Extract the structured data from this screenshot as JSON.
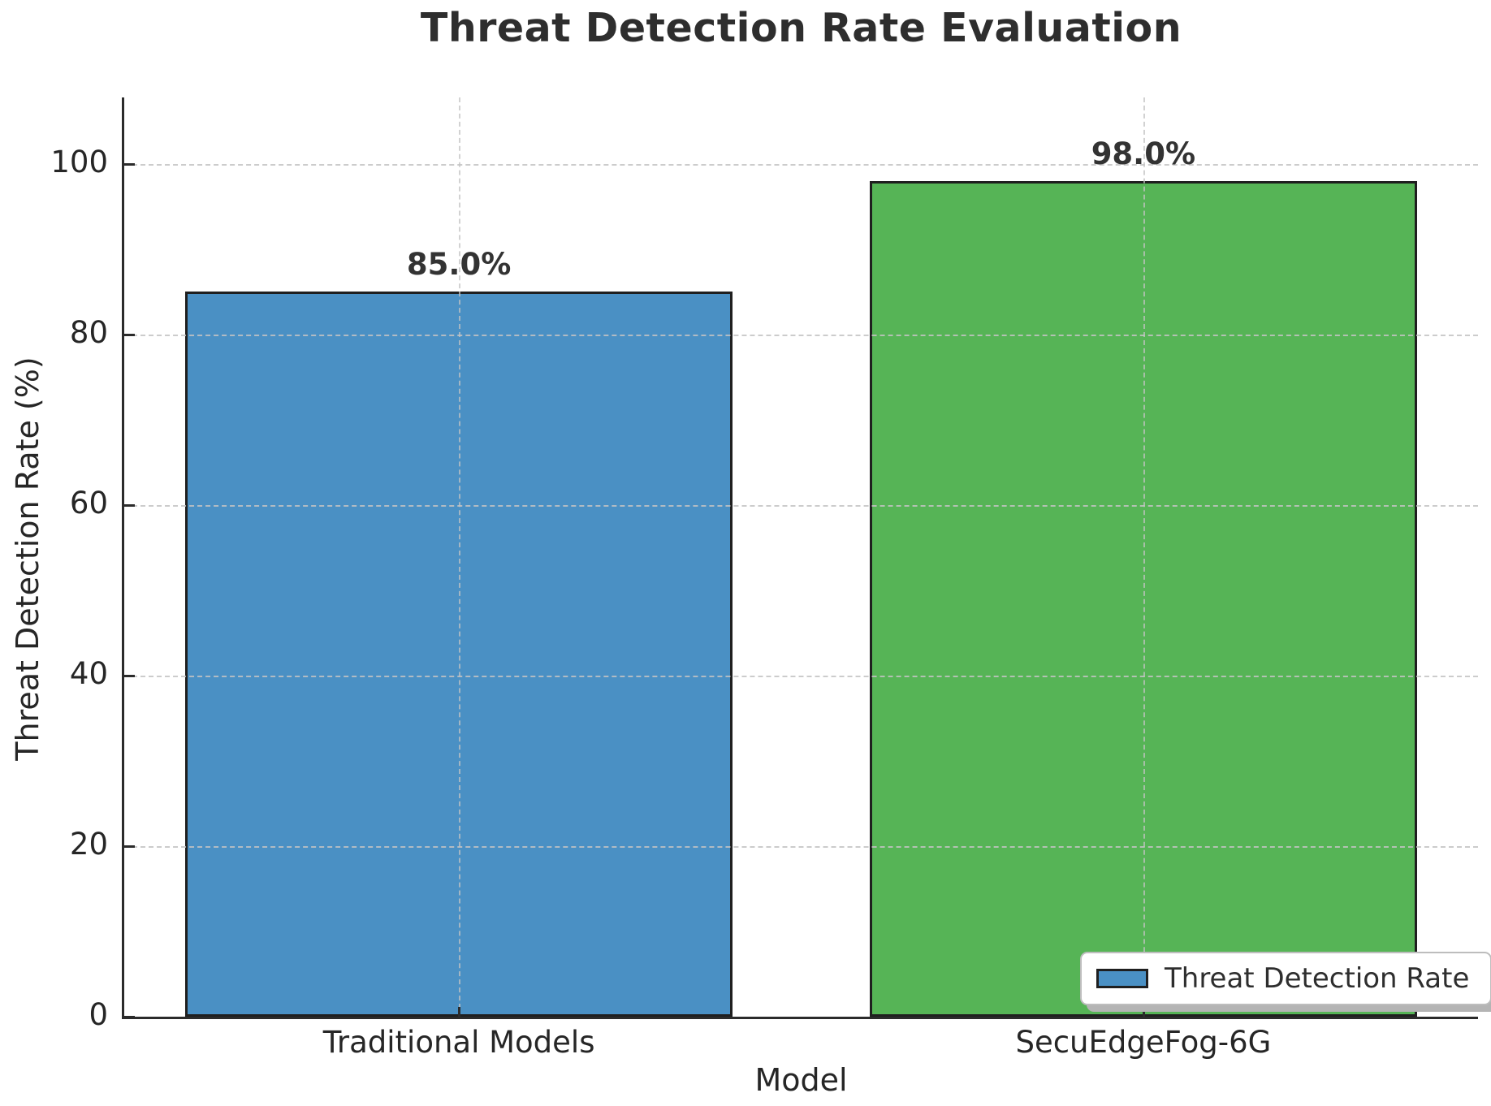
{
  "chart_data": {
    "type": "bar",
    "title": "Threat Detection Rate Evaluation",
    "xlabel": "Model",
    "ylabel": "Threat Detection Rate (%)",
    "categories": [
      "Traditional Models",
      "SecuEdgeFog-6G"
    ],
    "values": [
      85.0,
      98.0
    ],
    "value_labels": [
      "85.0%",
      "98.0%"
    ],
    "bar_colors": [
      "#4A90C4",
      "#56B456"
    ],
    "bar_edge_color": "#1F1F1F",
    "ytick_labels": [
      "0",
      "20",
      "40",
      "60",
      "80",
      "100"
    ],
    "ytick_values": [
      0,
      20,
      40,
      60,
      80,
      100
    ],
    "ylim": [
      0,
      107.8
    ],
    "grid": true,
    "grid_color": "#C3C3C3",
    "legend": {
      "label": "Threat Detection Rate",
      "swatch_color": "#4A90C4",
      "position": "lower-right"
    }
  }
}
